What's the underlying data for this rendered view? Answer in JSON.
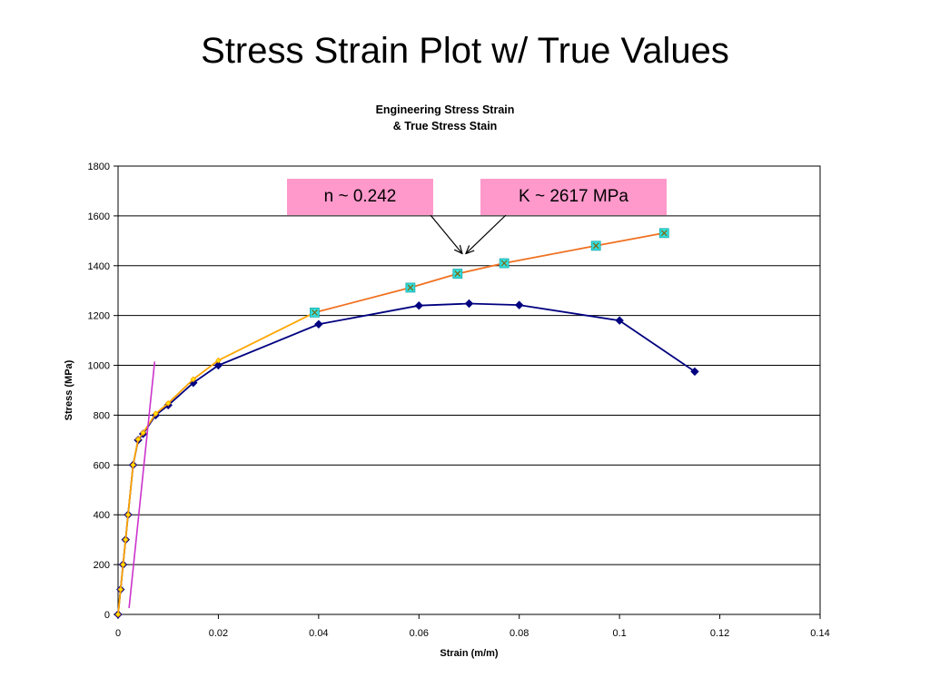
{
  "slide": {
    "title": "Stress Strain Plot w/ True Values"
  },
  "chart_data": {
    "type": "line",
    "title_line1": "Engineering Stress Strain",
    "title_line2": "& True Stress Stain",
    "xlabel": "Strain (m/m)",
    "ylabel": "Stress (MPa)",
    "xlim": [
      0,
      0.14
    ],
    "ylim": [
      0,
      1800
    ],
    "x_ticks": [
      0,
      0.02,
      0.04,
      0.06,
      0.08,
      0.1,
      0.12,
      0.14
    ],
    "x_tick_labels": [
      "0",
      "0.02",
      "0.04",
      "0.06",
      "0.08",
      "0.1",
      "0.12",
      "0.14"
    ],
    "y_ticks": [
      0,
      200,
      400,
      600,
      800,
      1000,
      1200,
      1400,
      1600,
      1800
    ],
    "y_tick_labels": [
      "0",
      "200",
      "400",
      "600",
      "800",
      "1000",
      "1200",
      "1400",
      "1600",
      "1800"
    ],
    "grid": "horizontal",
    "series": [
      {
        "marker": "diamond",
        "color": "#000080",
        "x": [
          0,
          0.0005,
          0.001,
          0.0015,
          0.002,
          0.003,
          0.004,
          0.005,
          0.0075,
          0.01,
          0.015,
          0.02,
          0.04,
          0.06,
          0.07,
          0.08,
          0.1,
          0.115
        ],
        "y": [
          0,
          100,
          200,
          300,
          400,
          600,
          700,
          725,
          800,
          840,
          930,
          1000,
          1165,
          1240,
          1248,
          1242,
          1180,
          975
        ]
      },
      {
        "marker": "small",
        "color": "#ffa500",
        "x": [
          0,
          0.0005,
          0.001,
          0.0015,
          0.002,
          0.003,
          0.004,
          0.005,
          0.0075,
          0.01,
          0.015,
          0.02,
          0.0392
        ],
        "y": [
          0,
          100,
          200,
          300,
          400,
          600,
          703,
          729,
          806,
          848,
          944,
          1020,
          1212
        ]
      },
      {
        "marker": "x-square",
        "color": "#f07020",
        "x": [
          0.0392,
          0.0583,
          0.0677,
          0.077,
          0.0953,
          0.1089
        ],
        "y": [
          1212,
          1312,
          1368,
          1410,
          1480,
          1531
        ]
      },
      {
        "marker": "none",
        "color": "#cc33cc",
        "x": [
          0.0022,
          0.0073
        ],
        "y": [
          25,
          1015
        ]
      }
    ],
    "annotations": [
      {
        "text": "n ~ 0.242",
        "points_to": [
          0.069,
          1445
        ]
      },
      {
        "text": "K ~ 2617 MPa",
        "points_to": [
          0.069,
          1445
        ]
      }
    ]
  }
}
